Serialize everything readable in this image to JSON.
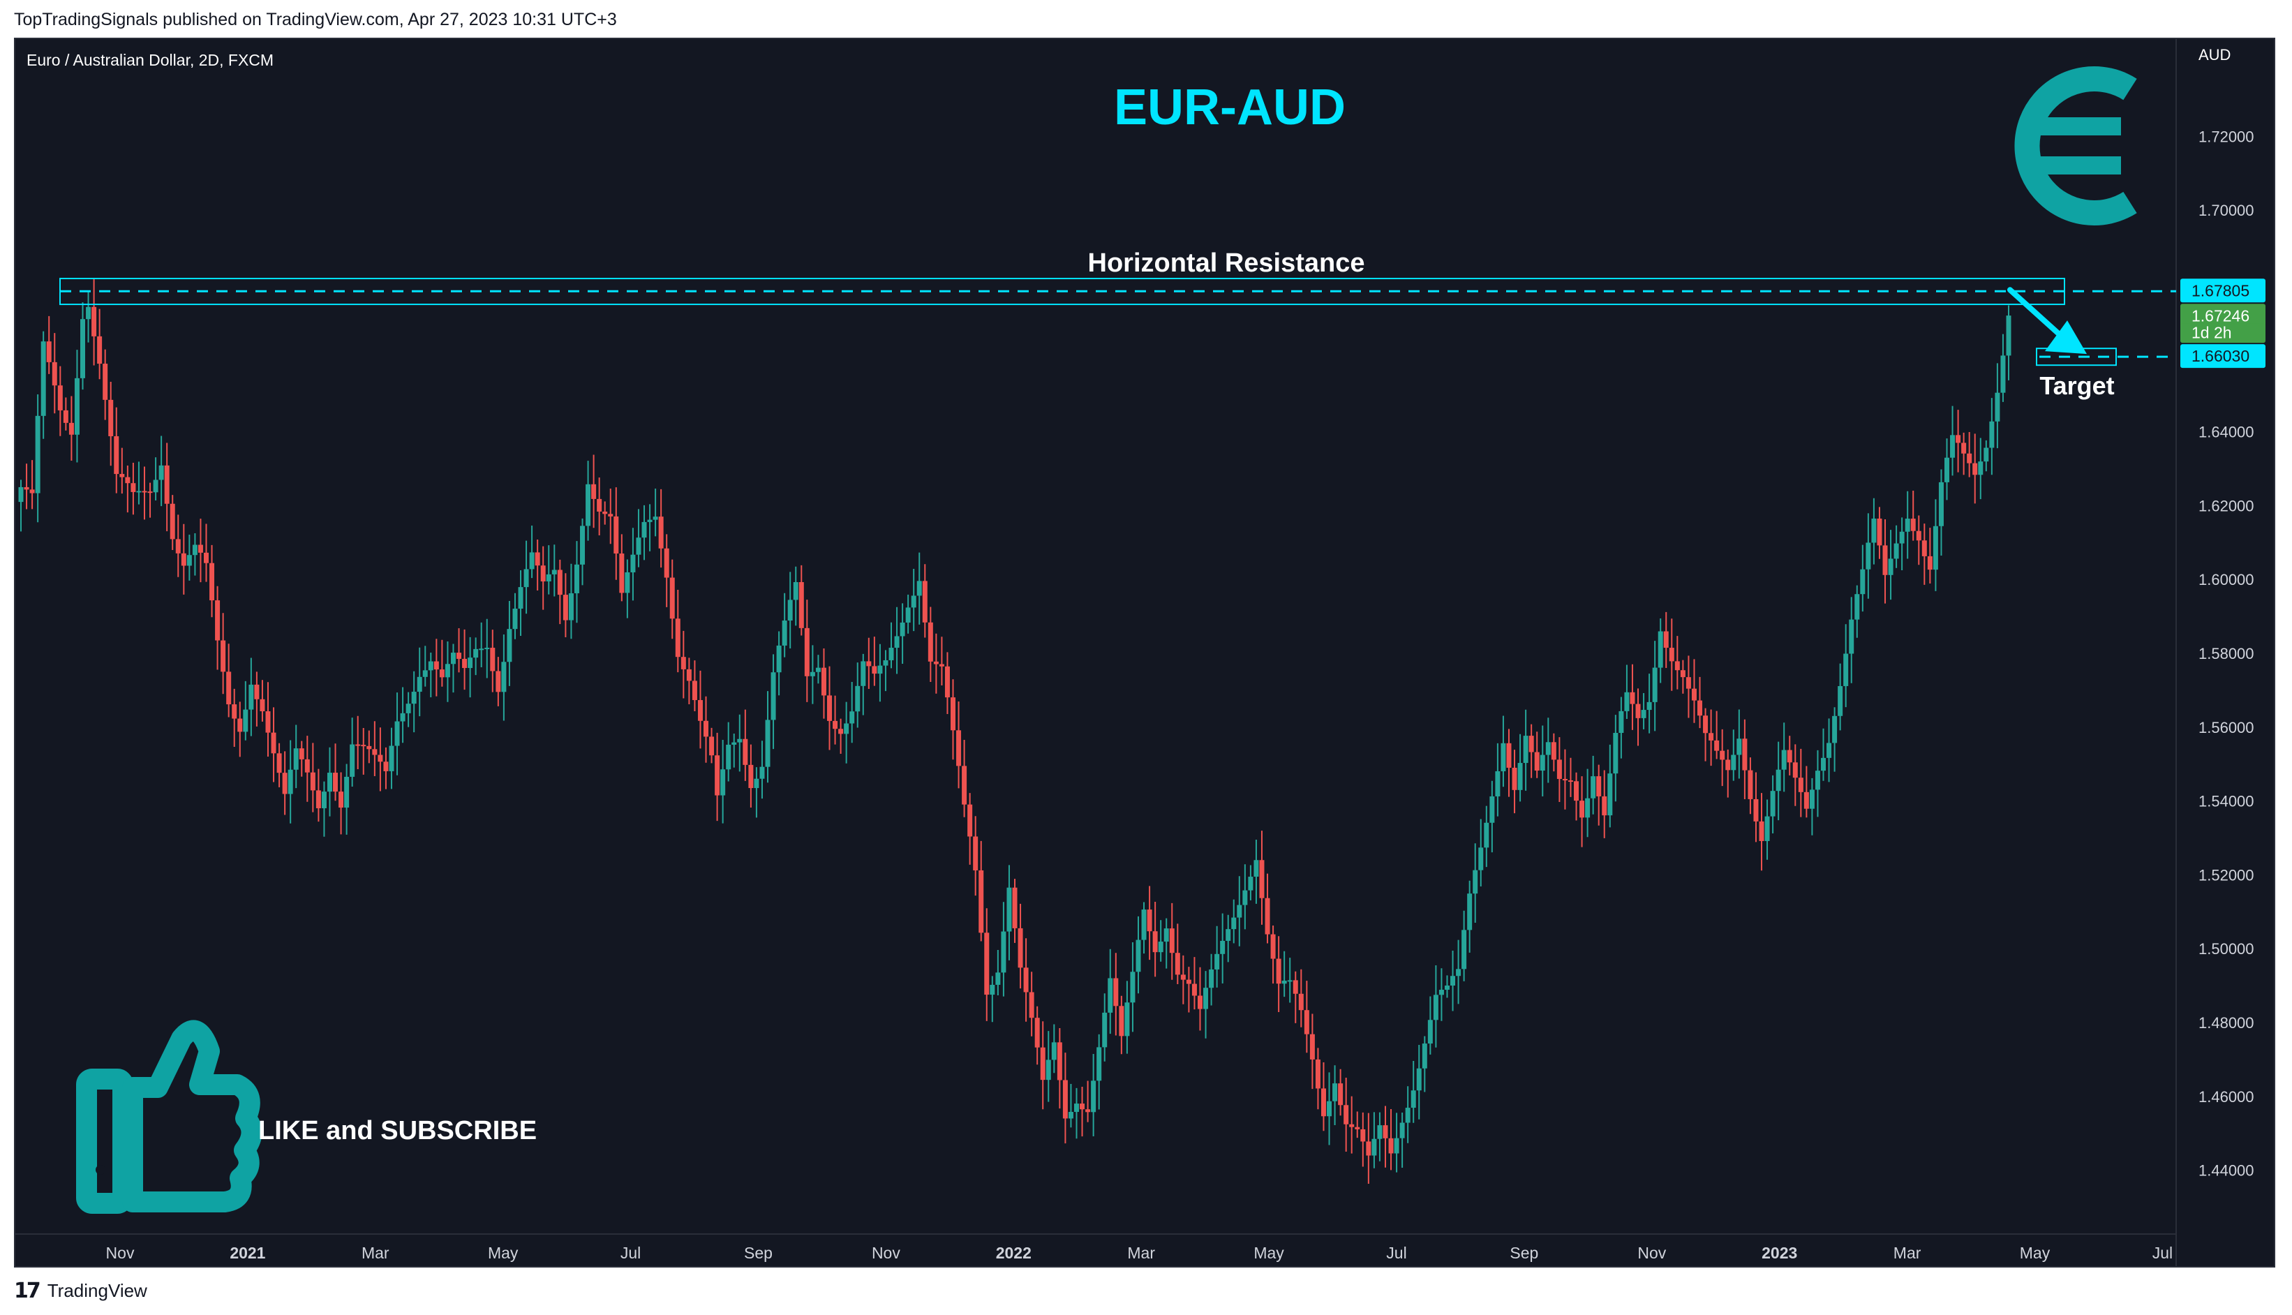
{
  "header": {
    "published": "TopTradingSignals published on TradingView.com, Apr 27, 2023 10:31 UTC+3"
  },
  "symbol": {
    "info": "Euro / Australian Dollar, 2D, FXCM",
    "currency": "AUD"
  },
  "colors": {
    "background": "#131722",
    "up": "#26a69a",
    "down": "#ef5350",
    "accent": "#00e5ff",
    "teal_icon": "#0fa3a3",
    "last_price_bg": "#43a047"
  },
  "chart_data": {
    "type": "candlestick",
    "title": "EUR-AUD",
    "ylim": [
      1.425,
      1.735
    ],
    "y_ticks": [
      1.72,
      1.7,
      1.68,
      1.66,
      1.64,
      1.62,
      1.6,
      1.58,
      1.56,
      1.54,
      1.52,
      1.5,
      1.48,
      1.46,
      1.44
    ],
    "x_labels": [
      "Nov",
      "2021",
      "Mar",
      "May",
      "Jul",
      "Sep",
      "Nov",
      "2022",
      "Mar",
      "May",
      "Jul",
      "Sep",
      "Nov",
      "2023",
      "Mar",
      "May",
      "Jul"
    ],
    "bold_x_labels": [
      "2021",
      "2022",
      "2023"
    ],
    "price_path": [
      [
        0,
        1.625
      ],
      [
        2,
        1.62
      ],
      [
        4,
        1.66
      ],
      [
        6,
        1.65
      ],
      [
        7,
        1.645
      ],
      [
        9,
        1.642
      ],
      [
        11,
        1.675
      ],
      [
        12,
        1.678
      ],
      [
        14,
        1.66
      ],
      [
        17,
        1.625
      ],
      [
        20,
        1.62
      ],
      [
        23,
        1.625
      ],
      [
        25,
        1.635
      ],
      [
        27,
        1.615
      ],
      [
        29,
        1.605
      ],
      [
        31,
        1.607
      ],
      [
        33,
        1.6
      ],
      [
        35,
        1.58
      ],
      [
        37,
        1.566
      ],
      [
        39,
        1.562
      ],
      [
        41,
        1.576
      ],
      [
        43,
        1.567
      ],
      [
        45,
        1.552
      ],
      [
        47,
        1.538
      ],
      [
        49,
        1.55
      ],
      [
        51,
        1.546
      ],
      [
        53,
        1.54
      ],
      [
        55,
        1.552
      ],
      [
        57,
        1.542
      ],
      [
        59,
        1.556
      ],
      [
        61,
        1.552
      ],
      [
        63,
        1.548
      ],
      [
        65,
        1.545
      ],
      [
        67,
        1.562
      ],
      [
        69,
        1.57
      ],
      [
        71,
        1.578
      ],
      [
        73,
        1.58
      ],
      [
        75,
        1.572
      ],
      [
        77,
        1.576
      ],
      [
        79,
        1.572
      ],
      [
        81,
        1.58
      ],
      [
        83,
        1.584
      ],
      [
        85,
        1.574
      ],
      [
        87,
        1.59
      ],
      [
        89,
        1.598
      ],
      [
        91,
        1.604
      ],
      [
        93,
        1.595
      ],
      [
        95,
        1.6
      ],
      [
        97,
        1.59
      ],
      [
        99,
        1.608
      ],
      [
        101,
        1.63
      ],
      [
        103,
        1.62
      ],
      [
        105,
        1.615
      ],
      [
        107,
        1.592
      ],
      [
        109,
        1.603
      ],
      [
        111,
        1.615
      ],
      [
        113,
        1.62
      ],
      [
        115,
        1.605
      ],
      [
        117,
        1.582
      ],
      [
        119,
        1.572
      ],
      [
        121,
        1.558
      ],
      [
        123,
        1.548
      ],
      [
        124,
        1.538
      ],
      [
        126,
        1.555
      ],
      [
        128,
        1.56
      ],
      [
        130,
        1.548
      ],
      [
        132,
        1.552
      ],
      [
        134,
        1.574
      ],
      [
        136,
        1.585
      ],
      [
        138,
        1.595
      ],
      [
        140,
        1.572
      ],
      [
        142,
        1.578
      ],
      [
        144,
        1.566
      ],
      [
        146,
        1.562
      ],
      [
        148,
        1.565
      ],
      [
        150,
        1.575
      ],
      [
        152,
        1.57
      ],
      [
        154,
        1.575
      ],
      [
        156,
        1.585
      ],
      [
        158,
        1.596
      ],
      [
        160,
        1.604
      ],
      [
        162,
        1.58
      ],
      [
        164,
        1.575
      ],
      [
        166,
        1.555
      ],
      [
        168,
        1.535
      ],
      [
        170,
        1.52
      ],
      [
        172,
        1.49
      ],
      [
        174,
        1.498
      ],
      [
        176,
        1.52
      ],
      [
        178,
        1.495
      ],
      [
        180,
        1.478
      ],
      [
        182,
        1.46
      ],
      [
        184,
        1.472
      ],
      [
        186,
        1.455
      ],
      [
        188,
        1.462
      ],
      [
        190,
        1.46
      ],
      [
        192,
        1.475
      ],
      [
        194,
        1.49
      ],
      [
        196,
        1.472
      ],
      [
        198,
        1.49
      ],
      [
        200,
        1.51
      ],
      [
        202,
        1.502
      ],
      [
        204,
        1.51
      ],
      [
        206,
        1.496
      ],
      [
        208,
        1.49
      ],
      [
        210,
        1.48
      ],
      [
        212,
        1.49
      ],
      [
        214,
        1.5
      ],
      [
        216,
        1.51
      ],
      [
        218,
        1.52
      ],
      [
        220,
        1.528
      ],
      [
        222,
        1.505
      ],
      [
        224,
        1.488
      ],
      [
        226,
        1.487
      ],
      [
        228,
        1.48
      ],
      [
        230,
        1.47
      ],
      [
        232,
        1.458
      ],
      [
        234,
        1.468
      ],
      [
        236,
        1.455
      ],
      [
        238,
        1.45
      ],
      [
        240,
        1.44
      ],
      [
        242,
        1.448
      ],
      [
        244,
        1.443
      ],
      [
        246,
        1.455
      ],
      [
        248,
        1.466
      ],
      [
        250,
        1.478
      ],
      [
        252,
        1.488
      ],
      [
        254,
        1.487
      ],
      [
        256,
        1.49
      ],
      [
        258,
        1.512
      ],
      [
        260,
        1.528
      ],
      [
        262,
        1.545
      ],
      [
        264,
        1.56
      ],
      [
        266,
        1.545
      ],
      [
        268,
        1.556
      ],
      [
        270,
        1.544
      ],
      [
        272,
        1.552
      ],
      [
        274,
        1.545
      ],
      [
        276,
        1.548
      ],
      [
        278,
        1.54
      ],
      [
        280,
        1.55
      ],
      [
        282,
        1.536
      ],
      [
        284,
        1.555
      ],
      [
        286,
        1.565
      ],
      [
        288,
        1.56
      ],
      [
        290,
        1.568
      ],
      [
        292,
        1.59
      ],
      [
        294,
        1.582
      ],
      [
        296,
        1.575
      ],
      [
        298,
        1.565
      ],
      [
        300,
        1.554
      ],
      [
        302,
        1.55
      ],
      [
        304,
        1.548
      ],
      [
        306,
        1.56
      ],
      [
        308,
        1.545
      ],
      [
        310,
        1.532
      ],
      [
        312,
        1.542
      ],
      [
        314,
        1.55
      ],
      [
        316,
        1.542
      ],
      [
        318,
        1.536
      ],
      [
        320,
        1.55
      ],
      [
        322,
        1.56
      ],
      [
        324,
        1.575
      ],
      [
        326,
        1.59
      ],
      [
        328,
        1.6
      ],
      [
        330,
        1.612
      ],
      [
        332,
        1.598
      ],
      [
        334,
        1.61
      ],
      [
        336,
        1.62
      ],
      [
        338,
        1.615
      ],
      [
        340,
        1.605
      ],
      [
        342,
        1.625
      ],
      [
        344,
        1.635
      ],
      [
        346,
        1.63
      ],
      [
        348,
        1.627
      ],
      [
        350,
        1.638
      ],
      [
        352,
        1.655
      ],
      [
        354,
        1.675
      ]
    ],
    "resistance": {
      "label": "Horizontal Resistance",
      "price": 1.67805,
      "low": 1.6745,
      "high": 1.6815
    },
    "target": {
      "label": "Target",
      "price": 1.6603
    },
    "price_labels": [
      {
        "value": "1.67805",
        "type": "resistance"
      },
      {
        "value": "1.67246",
        "type": "last"
      },
      {
        "value": "1d 2h",
        "type": "countdown"
      },
      {
        "value": "1.66030",
        "type": "target"
      }
    ]
  },
  "overlays": {
    "subscribe_text": "LIKE and SUBSCRIBE",
    "euro_icon": "euro-icon",
    "like_icon": "thumbs-up-icon"
  },
  "footer": {
    "logo_text": "17",
    "brand": "TradingView"
  }
}
